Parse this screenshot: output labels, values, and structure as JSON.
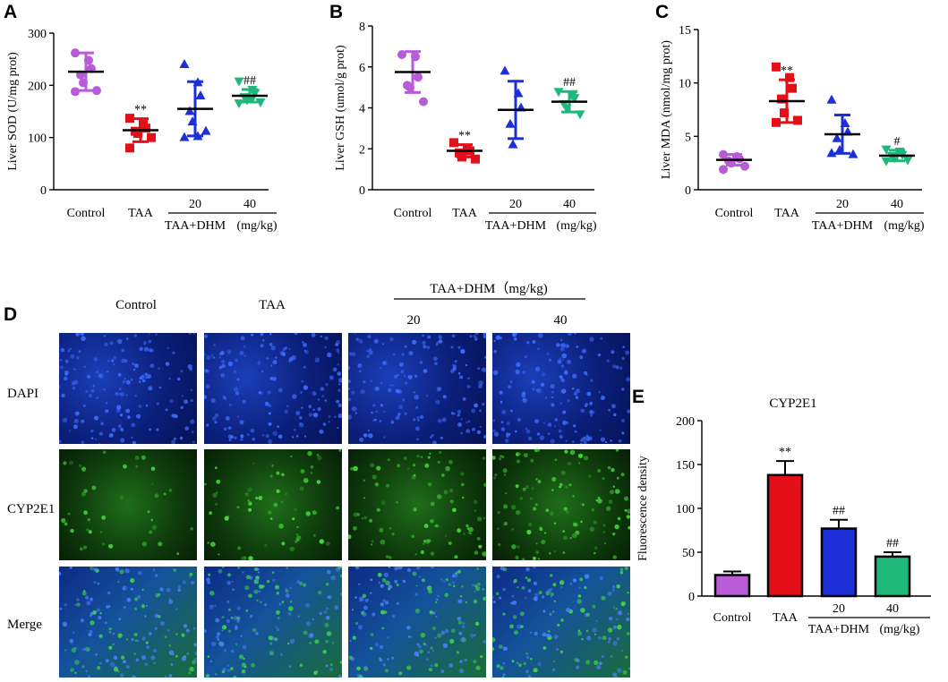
{
  "panels": {
    "A": "A",
    "B": "B",
    "C": "C",
    "D": "D",
    "E": "E"
  },
  "group_label": "TAA+DHM",
  "unit_label": "(mg/kg)",
  "unit_label_d": "TAA+DHM（mg/kg)",
  "groups": [
    "Control",
    "TAA",
    "20",
    "40"
  ],
  "group_colors": [
    "#b85bd6",
    "#e3101a",
    "#1d2fd6",
    "#1db87a"
  ],
  "chart_data": [
    {
      "id": "A",
      "type": "scatter",
      "ylabel": "Liver SOD (U/mg prot)",
      "ylim": [
        0,
        300
      ],
      "yticks": [
        "0",
        "100",
        "200",
        "300"
      ],
      "means": [
        226,
        114,
        155,
        180
      ],
      "sd": [
        36,
        22,
        52,
        12
      ],
      "points": [
        [
          262,
          248,
          232,
          220,
          205,
          190,
          188
        ],
        [
          137,
          125,
          118,
          112,
          108,
          100,
          80
        ],
        [
          240,
          205,
          180,
          150,
          130,
          112,
          100,
          102
        ],
        [
          208,
          192,
          186,
          178,
          172,
          168,
          166,
          176
        ]
      ],
      "annotations": [
        "",
        "**",
        "",
        "##"
      ]
    },
    {
      "id": "B",
      "type": "scatter",
      "ylabel": "Liver GSH (umol/g prot)",
      "ylim": [
        0,
        8
      ],
      "yticks": [
        "0",
        "2",
        "4",
        "6",
        "8"
      ],
      "means": [
        5.75,
        1.9,
        3.9,
        4.3
      ],
      "sd": [
        1.0,
        0.3,
        1.4,
        0.5
      ],
      "points": [
        [
          6.6,
          6.5,
          5.5,
          5.1,
          5.0,
          4.3
        ],
        [
          2.3,
          2.0,
          1.9,
          1.8,
          1.6,
          1.5
        ],
        [
          5.8,
          4.7,
          4.0,
          3.2,
          2.2
        ],
        [
          4.8,
          4.6,
          4.5,
          4.2,
          4.0,
          3.7
        ]
      ],
      "annotations": [
        "",
        "**",
        "",
        "##"
      ]
    },
    {
      "id": "C",
      "type": "scatter",
      "ylabel": "Liver MDA (nmol/mg prot)",
      "ylim": [
        0,
        15
      ],
      "yticks": [
        "0",
        "5",
        "10",
        "15"
      ],
      "means": [
        2.8,
        8.3,
        5.2,
        3.2
      ],
      "sd": [
        0.5,
        2.0,
        1.8,
        0.5
      ],
      "points": [
        [
          3.3,
          3.1,
          2.9,
          2.7,
          2.5,
          2.2,
          1.9
        ],
        [
          11.5,
          10.5,
          9.5,
          8.5,
          7.2,
          6.5,
          6.3
        ],
        [
          8.4,
          6.2,
          5.4,
          4.8,
          3.7,
          3.3,
          3.4
        ],
        [
          3.8,
          3.6,
          3.3,
          3.2,
          3.0,
          2.8,
          2.7
        ]
      ],
      "annotations": [
        "",
        "**",
        "",
        "#"
      ]
    },
    {
      "id": "E",
      "type": "bar",
      "title": "CYP2E1",
      "ylabel": "Fluorescence density",
      "ylim": [
        0,
        200
      ],
      "yticks": [
        "0",
        "50",
        "100",
        "150",
        "200"
      ],
      "values": [
        24,
        138,
        77,
        45
      ],
      "errors": [
        4,
        16,
        10,
        5
      ],
      "annotations": [
        "",
        "**",
        "##",
        "##"
      ]
    }
  ],
  "panel_d": {
    "columns": [
      "Control",
      "TAA",
      "20",
      "40"
    ],
    "rows": [
      "DAPI",
      "CYP2E1",
      "Merge"
    ]
  }
}
